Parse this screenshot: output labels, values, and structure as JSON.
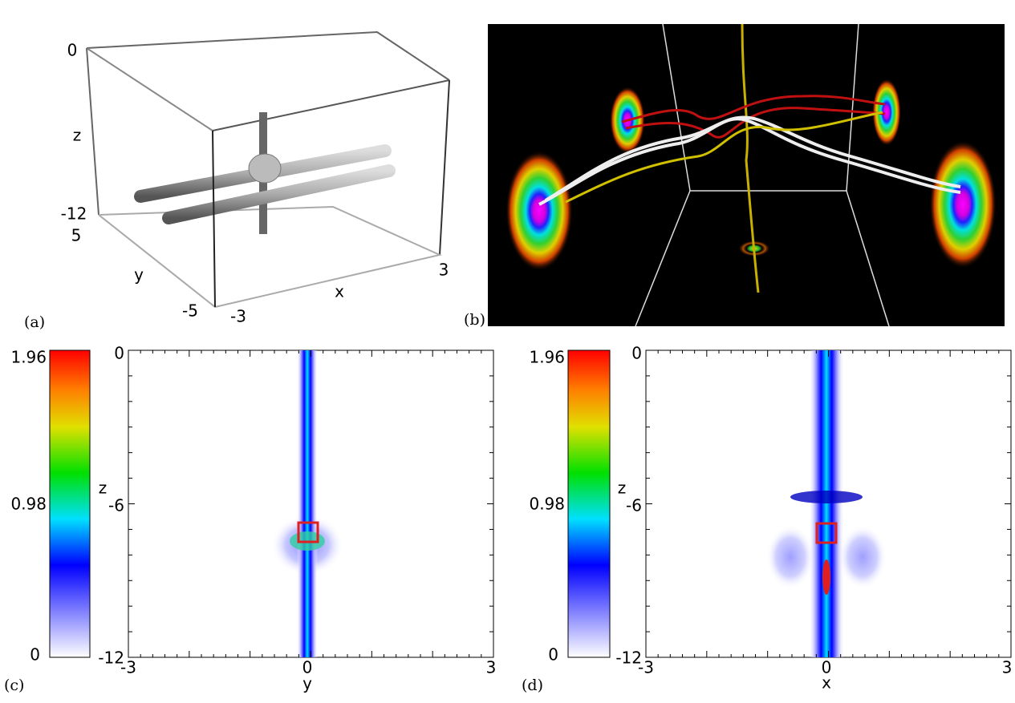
{
  "panels": [
    {
      "label": "(a)",
      "z_axis": {
        "title": "z",
        "ticks": [
          "0",
          "-12"
        ]
      },
      "y_axis": {
        "title": "y",
        "ticks": [
          "5",
          "-5"
        ]
      },
      "x_axis": {
        "title": "x",
        "ticks": [
          "-3",
          "3"
        ]
      }
    },
    {
      "label": "(b)"
    },
    {
      "label": "(c)",
      "colorbar": {
        "ticks": [
          "1.96",
          "0.98",
          "0"
        ]
      },
      "v_axis": {
        "title": "z",
        "ticks": [
          "0",
          "-6",
          "-12"
        ]
      },
      "h_axis": {
        "title": "y",
        "ticks": [
          "-3",
          "0",
          "3"
        ]
      }
    },
    {
      "label": "(d)",
      "colorbar": {
        "ticks": [
          "1.96",
          "0.98",
          "0"
        ]
      },
      "v_axis": {
        "title": "z",
        "ticks": [
          "0",
          "-6",
          "-12"
        ]
      },
      "h_axis": {
        "title": "x",
        "ticks": [
          "-3",
          "0",
          "3"
        ]
      }
    }
  ]
}
